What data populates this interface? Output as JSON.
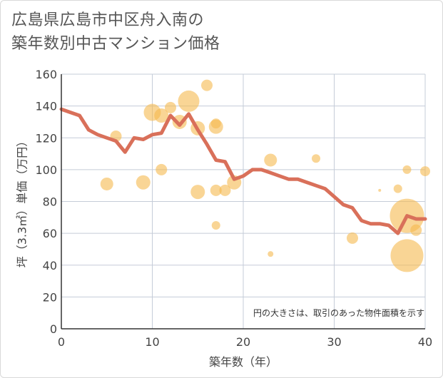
{
  "title_line1": "広島県広島市中区舟入南の",
  "title_line2": "築年数別中古マンション価格",
  "chart_data": {
    "type": "scatter",
    "title": "広島県広島市中区舟入南の 築年数別中古マンション価格",
    "xlabel": "築年数（年）",
    "ylabel": "坪（3.3㎡）単価（万円）",
    "xlim": [
      0,
      40
    ],
    "ylim": [
      0,
      160
    ],
    "xticks": [
      0,
      10,
      20,
      30,
      40
    ],
    "yticks": [
      0,
      20,
      40,
      60,
      80,
      100,
      120,
      140,
      160
    ],
    "grid": true,
    "annotation": "円の大きさは、取引のあった物件面積を示す",
    "colors": {
      "bubble": "#f5b94f",
      "line": "#d9705a",
      "grid": "#c5ccd8"
    },
    "bubbles": [
      {
        "x": 5,
        "y": 91,
        "size": 9
      },
      {
        "x": 6,
        "y": 121,
        "size": 8
      },
      {
        "x": 9,
        "y": 92,
        "size": 10
      },
      {
        "x": 10,
        "y": 136,
        "size": 12
      },
      {
        "x": 11,
        "y": 134,
        "size": 10
      },
      {
        "x": 11,
        "y": 100,
        "size": 8
      },
      {
        "x": 12,
        "y": 139,
        "size": 8
      },
      {
        "x": 13,
        "y": 130,
        "size": 10
      },
      {
        "x": 14,
        "y": 143,
        "size": 15
      },
      {
        "x": 15,
        "y": 126,
        "size": 10
      },
      {
        "x": 15,
        "y": 86,
        "size": 10
      },
      {
        "x": 16,
        "y": 153,
        "size": 8
      },
      {
        "x": 17,
        "y": 127,
        "size": 10
      },
      {
        "x": 17,
        "y": 129,
        "size": 7
      },
      {
        "x": 17,
        "y": 87,
        "size": 8
      },
      {
        "x": 17,
        "y": 65,
        "size": 6
      },
      {
        "x": 18,
        "y": 87,
        "size": 8
      },
      {
        "x": 19,
        "y": 92,
        "size": 10
      },
      {
        "x": 23,
        "y": 106,
        "size": 9
      },
      {
        "x": 23,
        "y": 47,
        "size": 4
      },
      {
        "x": 28,
        "y": 107,
        "size": 6
      },
      {
        "x": 32,
        "y": 57,
        "size": 8
      },
      {
        "x": 35,
        "y": 87,
        "size": 2
      },
      {
        "x": 37,
        "y": 88,
        "size": 6
      },
      {
        "x": 38,
        "y": 100,
        "size": 6
      },
      {
        "x": 38,
        "y": 71,
        "size": 24
      },
      {
        "x": 38,
        "y": 46,
        "size": 23
      },
      {
        "x": 39,
        "y": 62,
        "size": 8
      },
      {
        "x": 40,
        "y": 99,
        "size": 7
      }
    ],
    "series": [
      {
        "x": [
          0,
          1,
          2,
          3,
          4,
          5,
          6,
          7,
          8,
          9,
          10,
          11,
          12,
          13,
          14,
          15,
          16,
          17,
          18,
          19,
          20,
          21,
          22,
          23,
          24,
          25,
          26,
          27,
          28,
          29,
          30,
          31,
          32,
          33,
          34,
          35,
          36,
          37,
          38,
          39,
          40
        ],
        "y": [
          138,
          136,
          134,
          125,
          122,
          120,
          118,
          111,
          120,
          119,
          122,
          123,
          134,
          128,
          135,
          125,
          116,
          106,
          105,
          94,
          96,
          100,
          100,
          98,
          96,
          94,
          94,
          92,
          90,
          88,
          83,
          78,
          76,
          68,
          66,
          66,
          65,
          60,
          71,
          69,
          69
        ]
      }
    ]
  }
}
